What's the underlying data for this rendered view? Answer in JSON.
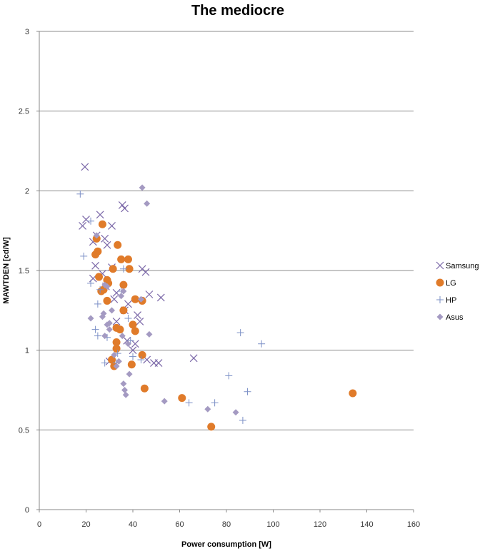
{
  "chart_data": {
    "type": "scatter",
    "title": "The mediocre",
    "xlabel": "Power consumption [W]",
    "ylabel": "MAWTDEN [cd/W]",
    "xlim": [
      0,
      160
    ],
    "ylim": [
      0,
      3
    ],
    "xticks": [
      "0",
      "20",
      "40",
      "60",
      "80",
      "100",
      "120",
      "140",
      "160"
    ],
    "yticks": [
      "0",
      "0.5",
      "1",
      "1.5",
      "2",
      "2.5",
      "3"
    ],
    "grid": "horizontal",
    "legend_position": "right",
    "series": [
      {
        "name": "Samsung",
        "marker": "x",
        "color": "#7b68a8",
        "points": [
          [
            19.5,
            2.15
          ],
          [
            18.5,
            1.78
          ],
          [
            20,
            1.82
          ],
          [
            26,
            1.85
          ],
          [
            24.5,
            1.72
          ],
          [
            28,
            1.7
          ],
          [
            23,
            1.68
          ],
          [
            29,
            1.66
          ],
          [
            31,
            1.78
          ],
          [
            35.5,
            1.91
          ],
          [
            36.5,
            1.89
          ],
          [
            44,
            1.51
          ],
          [
            45.5,
            1.49
          ],
          [
            24,
            1.53
          ],
          [
            23,
            1.45
          ],
          [
            27,
            1.48
          ],
          [
            28.5,
            1.4
          ],
          [
            31,
            1.52
          ],
          [
            33,
            1.36
          ],
          [
            32,
            1.32
          ],
          [
            38,
            1.29
          ],
          [
            42,
            1.22
          ],
          [
            47,
            1.35
          ],
          [
            52,
            1.33
          ],
          [
            36.5,
            1.25
          ],
          [
            33,
            1.18
          ],
          [
            43,
            1.18
          ],
          [
            37.5,
            1.06
          ],
          [
            41,
            1.04
          ],
          [
            40,
            1.0
          ],
          [
            46,
            0.94
          ],
          [
            49,
            0.92
          ],
          [
            51,
            0.92
          ],
          [
            66,
            0.95
          ],
          [
            30,
            0.93
          ]
        ]
      },
      {
        "name": "LG",
        "marker": "circle",
        "color": "#e07b2a",
        "points": [
          [
            27,
            1.79
          ],
          [
            24.5,
            1.7
          ],
          [
            25,
            1.62
          ],
          [
            24,
            1.6
          ],
          [
            33.5,
            1.66
          ],
          [
            38,
            1.57
          ],
          [
            35,
            1.57
          ],
          [
            31.5,
            1.51
          ],
          [
            38.5,
            1.51
          ],
          [
            25.5,
            1.46
          ],
          [
            29,
            1.44
          ],
          [
            36,
            1.41
          ],
          [
            27.5,
            1.38
          ],
          [
            29.5,
            1.42
          ],
          [
            26.5,
            1.37
          ],
          [
            29,
            1.31
          ],
          [
            41,
            1.32
          ],
          [
            44,
            1.31
          ],
          [
            36,
            1.25
          ],
          [
            40,
            1.16
          ],
          [
            41,
            1.12
          ],
          [
            33,
            1.14
          ],
          [
            34.5,
            1.13
          ],
          [
            33,
            1.05
          ],
          [
            33,
            1.01
          ],
          [
            44,
            0.97
          ],
          [
            31,
            0.94
          ],
          [
            32,
            0.9
          ],
          [
            39.5,
            0.91
          ],
          [
            45,
            0.76
          ],
          [
            61,
            0.7
          ],
          [
            73.5,
            0.52
          ],
          [
            134,
            0.73
          ]
        ]
      },
      {
        "name": "HP",
        "marker": "plus",
        "color": "#7b8fc6",
        "points": [
          [
            17.5,
            1.98
          ],
          [
            22,
            1.81
          ],
          [
            19,
            1.59
          ],
          [
            22,
            1.42
          ],
          [
            26,
            1.38
          ],
          [
            35,
            1.37
          ],
          [
            36,
            1.51
          ],
          [
            25,
            1.29
          ],
          [
            24,
            1.13
          ],
          [
            25,
            1.09
          ],
          [
            29,
            1.08
          ],
          [
            39,
            1.06
          ],
          [
            40,
            0.96
          ],
          [
            38,
            1.2
          ],
          [
            33,
            0.92
          ],
          [
            28,
            0.92
          ],
          [
            43.5,
            0.94
          ],
          [
            64,
            0.67
          ],
          [
            75,
            0.67
          ],
          [
            81,
            0.84
          ],
          [
            86,
            1.11
          ],
          [
            87,
            0.56
          ],
          [
            89,
            0.74
          ],
          [
            95,
            1.04
          ],
          [
            33.5,
            0.98
          ]
        ]
      },
      {
        "name": "Asus",
        "marker": "diamond",
        "color": "#a49ac2",
        "points": [
          [
            44,
            2.02
          ],
          [
            46,
            1.92
          ],
          [
            24.5,
            1.72
          ],
          [
            28,
            1.41
          ],
          [
            29,
            1.4
          ],
          [
            36,
            1.37
          ],
          [
            35,
            1.34
          ],
          [
            43.5,
            1.32
          ],
          [
            22,
            1.2
          ],
          [
            27,
            1.21
          ],
          [
            27.5,
            1.23
          ],
          [
            31,
            1.25
          ],
          [
            29,
            1.16
          ],
          [
            30,
            1.17
          ],
          [
            30,
            1.13
          ],
          [
            28,
            1.09
          ],
          [
            35.5,
            1.09
          ],
          [
            38,
            1.04
          ],
          [
            47,
            1.1
          ],
          [
            32,
            0.97
          ],
          [
            34,
            0.93
          ],
          [
            36,
            0.79
          ],
          [
            36.5,
            0.75
          ],
          [
            37,
            0.72
          ],
          [
            38.5,
            0.85
          ],
          [
            33,
            0.9
          ],
          [
            53.5,
            0.68
          ],
          [
            72,
            0.63
          ],
          [
            84,
            0.61
          ]
        ]
      }
    ]
  }
}
